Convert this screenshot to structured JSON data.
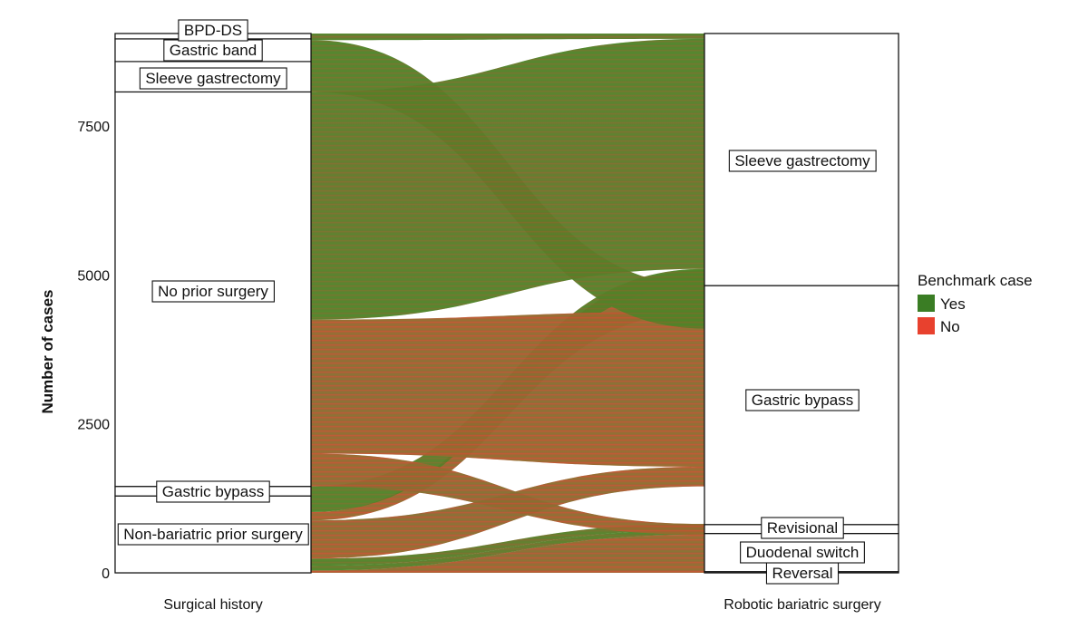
{
  "chart_data": {
    "type": "alluvial",
    "title": "",
    "ylabel": "Number of cases",
    "ylim": [
      0,
      9050
    ],
    "yticks": [
      0,
      2500,
      5000,
      7500
    ],
    "axes": [
      "Surgical history",
      "Robotic bariatric surgery"
    ],
    "left_strata": [
      {
        "label": "Non-bariatric prior surgery",
        "range": [
          0,
          1290
        ]
      },
      {
        "label": "Gastric bypass",
        "range": [
          1290,
          1450
        ]
      },
      {
        "label": "No prior surgery",
        "range": [
          1450,
          8070
        ]
      },
      {
        "label": "Sleeve gastrectomy",
        "range": [
          8070,
          8580
        ]
      },
      {
        "label": "Gastric band",
        "range": [
          8580,
          8960
        ]
      },
      {
        "label": "BPD-DS",
        "range": [
          8960,
          9050
        ]
      }
    ],
    "right_strata": [
      {
        "label": "Reversal",
        "range": [
          0,
          20
        ]
      },
      {
        "label": "Duodenal switch",
        "range": [
          20,
          660
        ]
      },
      {
        "label": "Revisional",
        "range": [
          660,
          810
        ]
      },
      {
        "label": "Gastric bypass",
        "range": [
          810,
          4820
        ]
      },
      {
        "label": "Sleeve gastrectomy",
        "range": [
          4820,
          9050
        ]
      }
    ],
    "flows": [
      {
        "from": [
          0,
          40
        ],
        "to": [
          0,
          640
        ],
        "benchmark": "No"
      },
      {
        "from": [
          40,
          120
        ],
        "to": [
          640,
          720
        ],
        "benchmark": "Yes"
      },
      {
        "from": [
          120,
          240
        ],
        "to": [
          720,
          820
        ],
        "benchmark": "Yes"
      },
      {
        "from": [
          240,
          880
        ],
        "to": [
          1450,
          1780
        ],
        "benchmark": "No"
      },
      {
        "from": [
          880,
          1020
        ],
        "to": [
          4380,
          5080
        ],
        "benchmark": "No"
      },
      {
        "from": [
          1020,
          1450
        ],
        "to": [
          4820,
          5100
        ],
        "benchmark": "Yes"
      },
      {
        "from": [
          1450,
          2000
        ],
        "to": [
          640,
          820
        ],
        "benchmark": "No"
      },
      {
        "from": [
          2000,
          4250
        ],
        "to": [
          1780,
          4380
        ],
        "benchmark": "No"
      },
      {
        "from": [
          4250,
          8070
        ],
        "to": [
          5100,
          8960
        ],
        "benchmark": "Yes"
      },
      {
        "from": [
          8070,
          8940
        ],
        "to": [
          4100,
          4820
        ],
        "benchmark": "Yes"
      },
      {
        "from": [
          8940,
          9050
        ],
        "to": [
          8960,
          9050
        ],
        "benchmark": "Yes"
      }
    ],
    "legend": {
      "title": "Benchmark case",
      "position": "right",
      "entries": [
        {
          "label": "Yes",
          "color": "#3a7d24"
        },
        {
          "label": "No",
          "color": "#e8412e"
        }
      ]
    },
    "colors": {
      "yes": "#3a7d24",
      "no": "#e8412e",
      "mix": "#8a5a2c"
    }
  }
}
